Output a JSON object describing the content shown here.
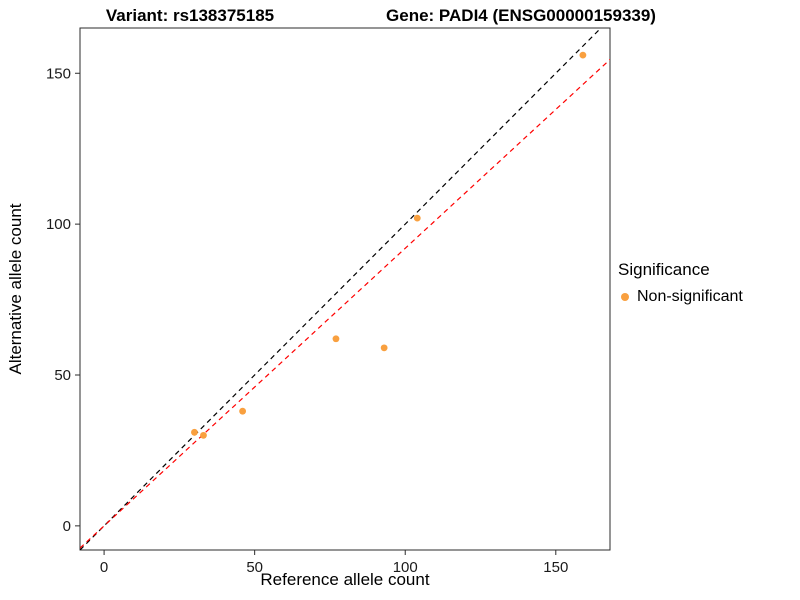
{
  "chart_data": {
    "type": "scatter",
    "titles": [
      "Variant: rs138375185",
      "Gene: PADI4 (ENSG00000159339)"
    ],
    "xlabel": "Reference allele count",
    "ylabel": "Alternative allele count",
    "xlim": [
      -8,
      168
    ],
    "ylim": [
      -8,
      165
    ],
    "xticks": [
      0,
      50,
      100,
      150
    ],
    "yticks": [
      0,
      50,
      100,
      150
    ],
    "grid": false,
    "panel_border_color": "#2b2b2b",
    "legend": {
      "title": "Significance",
      "position": "right",
      "items": [
        {
          "label": "Non-significant",
          "color": "#F9A03F"
        }
      ]
    },
    "series": [
      {
        "name": "Non-significant",
        "color": "#F9A03F",
        "points": [
          [
            30,
            31
          ],
          [
            33,
            30
          ],
          [
            46,
            38
          ],
          [
            77,
            62
          ],
          [
            93,
            59
          ],
          [
            104,
            102
          ],
          [
            159,
            156
          ]
        ]
      }
    ],
    "lines": [
      {
        "name": "identity",
        "slope": 1,
        "intercept": 0,
        "color": "#000000",
        "dash": "dashed"
      },
      {
        "name": "fit",
        "slope": 0.92,
        "intercept": 0,
        "color": "#FF0000",
        "dash": "dashed"
      }
    ]
  }
}
